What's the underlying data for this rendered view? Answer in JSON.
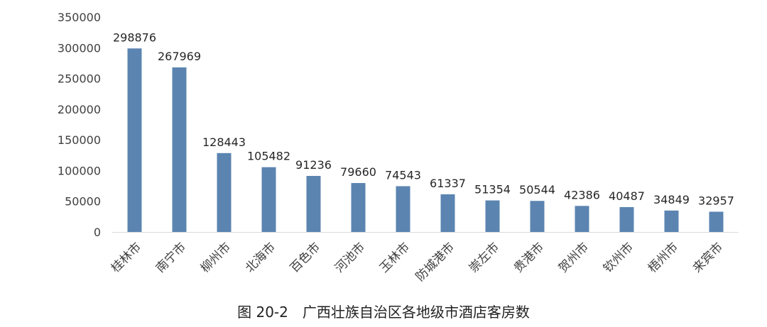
{
  "caption": "图 20-2　广西壮族自治区各地级市酒店客房数",
  "colors": {
    "bar": "#5b84b1",
    "axis": "#d9d9d9",
    "text": "#404040"
  },
  "chart_data": {
    "type": "bar",
    "title": "",
    "xlabel": "",
    "ylabel": "",
    "ylim": [
      0,
      350000
    ],
    "yticks": [
      0,
      50000,
      100000,
      150000,
      200000,
      250000,
      300000,
      350000
    ],
    "grid": false,
    "categories": [
      "桂林市",
      "南宁市",
      "柳州市",
      "北海市",
      "百色市",
      "河池市",
      "玉林市",
      "防城港市",
      "崇左市",
      "贵港市",
      "贺州市",
      "钦州市",
      "梧州市",
      "来宾市"
    ],
    "values": [
      298876,
      267969,
      128443,
      105482,
      91236,
      79660,
      74543,
      61337,
      51354,
      50544,
      42386,
      40487,
      34849,
      32957
    ]
  }
}
